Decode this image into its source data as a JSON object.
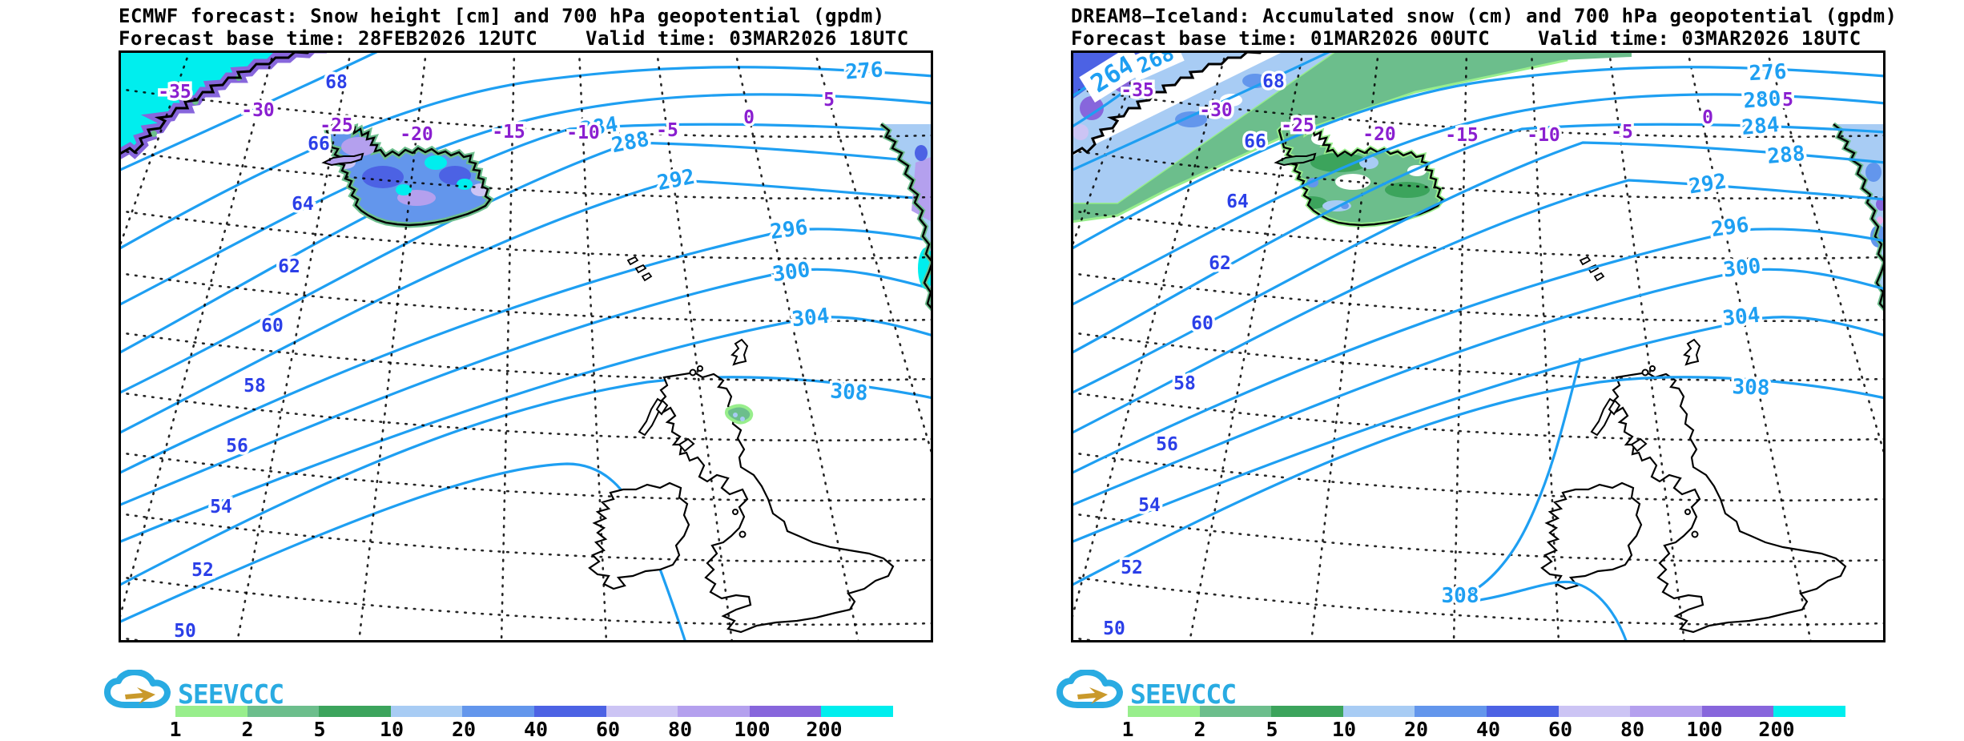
{
  "panels": [
    {
      "model": "ECMWF",
      "title1": "ECMWF forecast: Snow height [cm] and 700 hPa geopotential (gpdm)",
      "title2": "Forecast base time: 28FEB2026 12UTC    Valid time: 03MAR2026 18UTC",
      "contour_labels": [
        "276",
        "284",
        "288",
        "292",
        "296",
        "300",
        "304",
        "308"
      ],
      "lat_labels": [
        "68",
        "66",
        "64",
        "62",
        "60",
        "58",
        "56",
        "54",
        "52",
        "50"
      ],
      "lon_labels": [
        "-35",
        "-30",
        "-25",
        "-20",
        "-15",
        "-10",
        "-5",
        "0",
        "5"
      ]
    },
    {
      "model": "DREAM8-Iceland",
      "title1": "DREAM8—Iceland: Accumulated snow (cm) and 700 hPa geopotential (gpdm)",
      "title2": "Forecast base time: 01MAR2026 00UTC    Valid time: 03MAR2026 18UTC",
      "contour_labels": [
        "264",
        "268",
        "276",
        "280",
        "284",
        "288",
        "292",
        "296",
        "300",
        "304",
        "308",
        "308"
      ],
      "lat_labels": [
        "68",
        "66",
        "64",
        "62",
        "60",
        "58",
        "56",
        "54",
        "52",
        "50"
      ],
      "lon_labels": [
        "-35",
        "-30",
        "-25",
        "-20",
        "-15",
        "-10",
        "-5",
        "0",
        "5"
      ]
    }
  ],
  "colorbar": {
    "ticks": [
      "1",
      "2",
      "5",
      "10",
      "20",
      "40",
      "60",
      "80",
      "100",
      "200"
    ],
    "palette": [
      "#98EE8C",
      "#6CBE8C",
      "#3CA45C",
      "#A8CCF4",
      "#6396EC",
      "#4C62E4",
      "#CCC4F4",
      "#B4A0EE",
      "#8766DC",
      "#00EEEE"
    ]
  },
  "logo": {
    "text": "SEEVCCC",
    "blue": "#29ABE2",
    "gold": "#C9992B"
  },
  "colors": {
    "contour": "#1E9FF2",
    "lat_label": "#2B3FE8",
    "lon_label": "#8A1FD0",
    "coast": "#000000",
    "graticule": "#000000"
  }
}
